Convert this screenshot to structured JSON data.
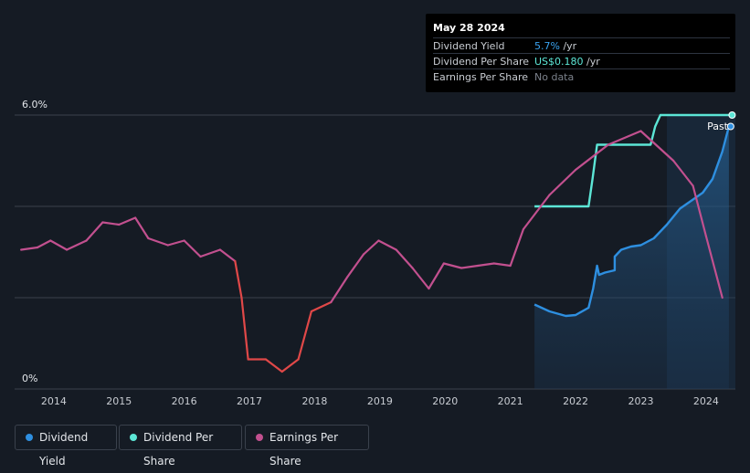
{
  "tooltip": {
    "date": "May 28 2024",
    "rows": [
      {
        "label": "Dividend Yield",
        "value": "5.7%",
        "unit": " /yr"
      },
      {
        "label": "Dividend Per Share",
        "value": "US$0.180",
        "unit": " /yr"
      },
      {
        "label": "Earnings Per Share",
        "value": "No data",
        "unit": ""
      }
    ]
  },
  "legend": [
    {
      "label": "Dividend Yield",
      "color": "#2e8fe0"
    },
    {
      "label": "Dividend Per Share",
      "color": "#5ce6d6"
    },
    {
      "label": "Earnings Per Share",
      "color": "#c2508f"
    }
  ],
  "colors": {
    "background": "#151b24",
    "dividend_yield": "#2e8fe0",
    "dividend_per_share": "#5ce6d6",
    "earnings_per_share": "#c2508f",
    "earnings_negative_trend": "#e04848",
    "past_shade": "#1f3f5f"
  },
  "chart_data": {
    "type": "line",
    "title": "",
    "xlabel": "",
    "ylabel": "",
    "xlim": [
      2013.4,
      2024.45
    ],
    "ylim": [
      0,
      6.0
    ],
    "y_ticks": [
      {
        "value": 6.0,
        "label": "6.0%"
      },
      {
        "value": 0,
        "label": "0%"
      }
    ],
    "x_ticks": [
      2014,
      2015,
      2016,
      2017,
      2018,
      2019,
      2020,
      2021,
      2022,
      2023,
      2024
    ],
    "gridlines": [
      2,
      4,
      6
    ],
    "grid": true,
    "legend_position": "bottom-left",
    "annotation": "Past",
    "past_region_start": 2023.4,
    "series": [
      {
        "name": "Dividend Yield",
        "key": "dividend_yield",
        "area": true,
        "points": [
          [
            2021.37,
            1.85
          ],
          [
            2021.6,
            1.7
          ],
          [
            2021.85,
            1.6
          ],
          [
            2022.0,
            1.62
          ],
          [
            2022.2,
            1.78
          ],
          [
            2022.27,
            2.2
          ],
          [
            2022.33,
            2.7
          ],
          [
            2022.36,
            2.5
          ],
          [
            2022.45,
            2.55
          ],
          [
            2022.6,
            2.6
          ],
          [
            2022.6,
            2.9
          ],
          [
            2022.7,
            3.05
          ],
          [
            2022.85,
            3.12
          ],
          [
            2023.0,
            3.15
          ],
          [
            2023.2,
            3.3
          ],
          [
            2023.4,
            3.6
          ],
          [
            2023.6,
            3.95
          ],
          [
            2023.8,
            4.15
          ],
          [
            2023.95,
            4.3
          ],
          [
            2024.1,
            4.6
          ],
          [
            2024.25,
            5.2
          ],
          [
            2024.35,
            5.75
          ]
        ]
      },
      {
        "name": "Dividend Per Share",
        "key": "dividend_per_share",
        "area": false,
        "points": [
          [
            2021.37,
            4.0
          ],
          [
            2022.2,
            4.0
          ],
          [
            2022.26,
            4.6
          ],
          [
            2022.33,
            5.35
          ],
          [
            2023.15,
            5.35
          ],
          [
            2023.22,
            5.75
          ],
          [
            2023.3,
            6.0
          ],
          [
            2024.4,
            6.0
          ]
        ]
      },
      {
        "name": "Earnings Per Share",
        "key": "earnings_per_share",
        "area": false,
        "points": [
          [
            2013.5,
            3.05
          ],
          [
            2013.75,
            3.1
          ],
          [
            2013.95,
            3.25
          ],
          [
            2014.2,
            3.05
          ],
          [
            2014.5,
            3.25
          ],
          [
            2014.75,
            3.65
          ],
          [
            2015.0,
            3.6
          ],
          [
            2015.25,
            3.75
          ],
          [
            2015.45,
            3.3
          ],
          [
            2015.75,
            3.15
          ],
          [
            2016.0,
            3.25
          ],
          [
            2016.25,
            2.9
          ],
          [
            2016.55,
            3.05
          ],
          [
            2016.78,
            2.8
          ],
          [
            2016.88,
            2.0
          ],
          [
            2016.98,
            0.65
          ],
          [
            2017.25,
            0.65
          ],
          [
            2017.5,
            0.38
          ],
          [
            2017.75,
            0.65
          ],
          [
            2017.95,
            1.7
          ],
          [
            2018.25,
            1.9
          ],
          [
            2018.5,
            2.45
          ],
          [
            2018.75,
            2.95
          ],
          [
            2018.98,
            3.25
          ],
          [
            2019.25,
            3.05
          ],
          [
            2019.5,
            2.65
          ],
          [
            2019.75,
            2.2
          ],
          [
            2019.98,
            2.75
          ],
          [
            2020.25,
            2.65
          ],
          [
            2020.5,
            2.7
          ],
          [
            2020.75,
            2.75
          ],
          [
            2021.0,
            2.7
          ],
          [
            2021.2,
            3.5
          ],
          [
            2021.6,
            4.25
          ],
          [
            2022.0,
            4.8
          ],
          [
            2022.5,
            5.35
          ],
          [
            2023.0,
            5.65
          ],
          [
            2023.5,
            5.0
          ],
          [
            2023.8,
            4.45
          ],
          [
            2024.0,
            3.35
          ],
          [
            2024.25,
            2.0
          ]
        ]
      }
    ]
  }
}
